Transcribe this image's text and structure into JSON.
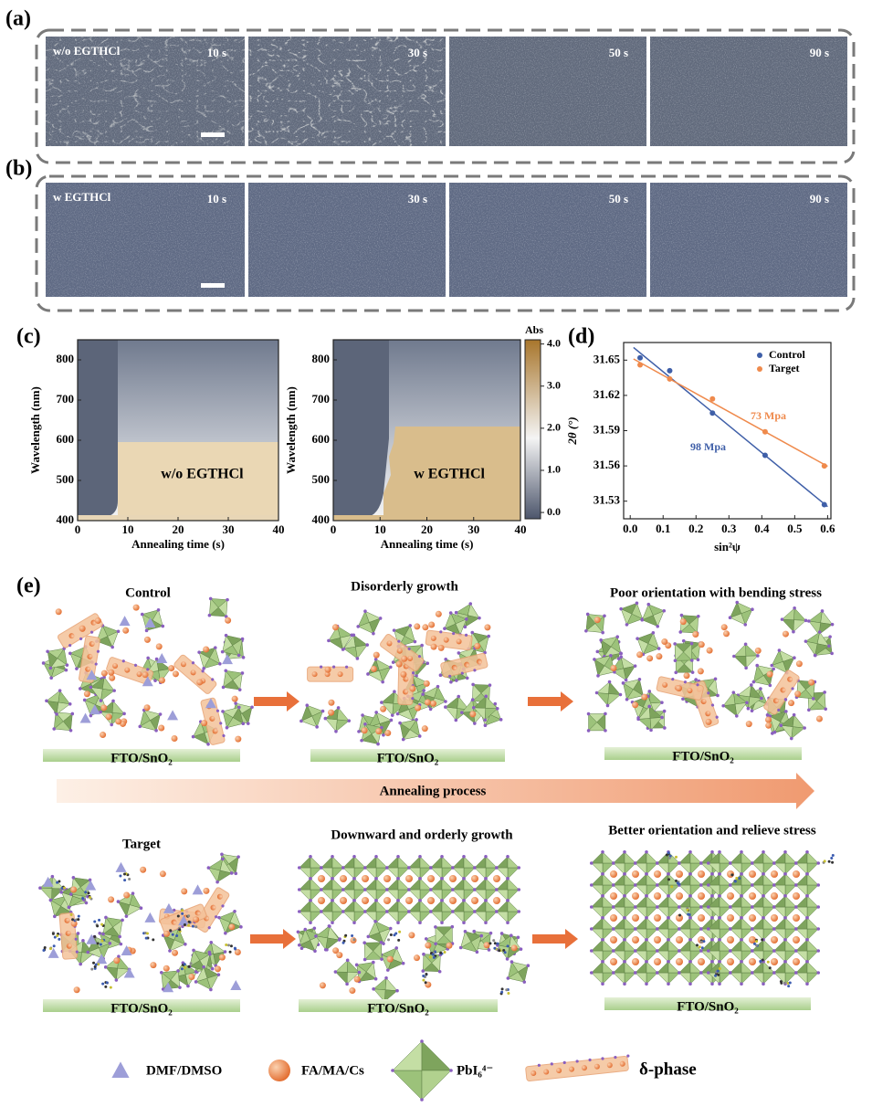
{
  "panel_a": {
    "label": "(a)",
    "condition": "w/o EGTHCl",
    "times": [
      "10 s",
      "30 s",
      "50 s",
      "90 s"
    ]
  },
  "panel_b": {
    "label": "(b)",
    "condition": "w EGTHCl",
    "times": [
      "10 s",
      "30 s",
      "50 s",
      "90 s"
    ]
  },
  "panel_c": {
    "label": "(c)",
    "maps": [
      {
        "condition": "w/o EGTHCl"
      },
      {
        "condition": "w EGTHCl"
      }
    ],
    "xlabel": "Annealing time (s)",
    "ylabel": "Wavelength (nm)",
    "xlim": [
      0,
      40
    ],
    "ylim": [
      400,
      850
    ],
    "xticks": [
      0,
      10,
      20,
      30,
      40
    ],
    "yticks": [
      400,
      500,
      600,
      700,
      800
    ],
    "colorbar": {
      "title": "Abs",
      "lim": [
        -0.15,
        4.1
      ],
      "ticks": [
        {
          "value": 0,
          "label": "0.0"
        },
        {
          "value": 1,
          "label": "1.0"
        },
        {
          "value": 2,
          "label": "2.0"
        },
        {
          "value": 3,
          "label": "3.0"
        },
        {
          "value": 4,
          "label": "4.0"
        }
      ]
    }
  },
  "chart_data": {
    "type": "scatter",
    "label": "(d)",
    "xlabel": "sin²ψ",
    "ylabel": "2θ (°)",
    "x": [
      0.03,
      0.12,
      0.25,
      0.41,
      0.59
    ],
    "series": [
      {
        "name": "Control",
        "color": "#3f5fa8",
        "values": [
          31.652,
          31.641,
          31.605,
          31.569,
          31.527
        ]
      },
      {
        "name": "Target",
        "color": "#ef8a4c",
        "values": [
          31.646,
          31.634,
          31.617,
          31.589,
          31.56
        ]
      }
    ],
    "annotations": [
      "98 Mpa",
      "73 Mpa"
    ],
    "xlim": [
      -0.02,
      0.61
    ],
    "ylim": [
      31.515,
      31.665
    ],
    "xticks": [
      {
        "value": 0,
        "label": "0.0"
      },
      0.1,
      0.2,
      0.3,
      0.4,
      0.5,
      0.6
    ],
    "yticks": [
      31.53,
      31.56,
      31.59,
      31.62,
      31.65
    ],
    "legend": "upper right"
  },
  "panel_e": {
    "label": "(e)",
    "top": [
      "Control",
      "Disorderly growth",
      "Poor orientation with bending stress"
    ],
    "bottom": [
      "Target",
      "Downward and orderly growth",
      "Better orientation and relieve stress"
    ],
    "substrate": "FTO/SnO₂",
    "process": "Annealing process",
    "legend": [
      "DMF/DMSO",
      "FA/MA/Cs",
      "PbI₆⁴⁻",
      "δ-phase"
    ]
  }
}
